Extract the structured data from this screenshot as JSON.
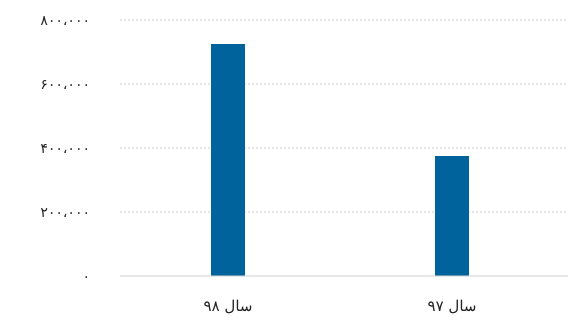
{
  "chart_data": {
    "type": "bar",
    "direction": "rtl",
    "categories": [
      "سال ۹۸",
      "سال ۹۷"
    ],
    "values": [
      725000,
      375000
    ],
    "title": "",
    "xlabel": "",
    "ylabel": "",
    "ylim": [
      0,
      800000
    ],
    "yticks": [
      0,
      200000,
      400000,
      600000,
      800000
    ],
    "ytick_labels": [
      "۰",
      "۲۰۰،۰۰۰",
      "۴۰۰،۰۰۰",
      "۶۰۰،۰۰۰",
      "۸۰۰،۰۰۰"
    ],
    "grid": true,
    "legend": "none",
    "bar_color": "#00639c",
    "grid_color": "#c8c8c8",
    "axis_color": "#d0d0d0"
  }
}
